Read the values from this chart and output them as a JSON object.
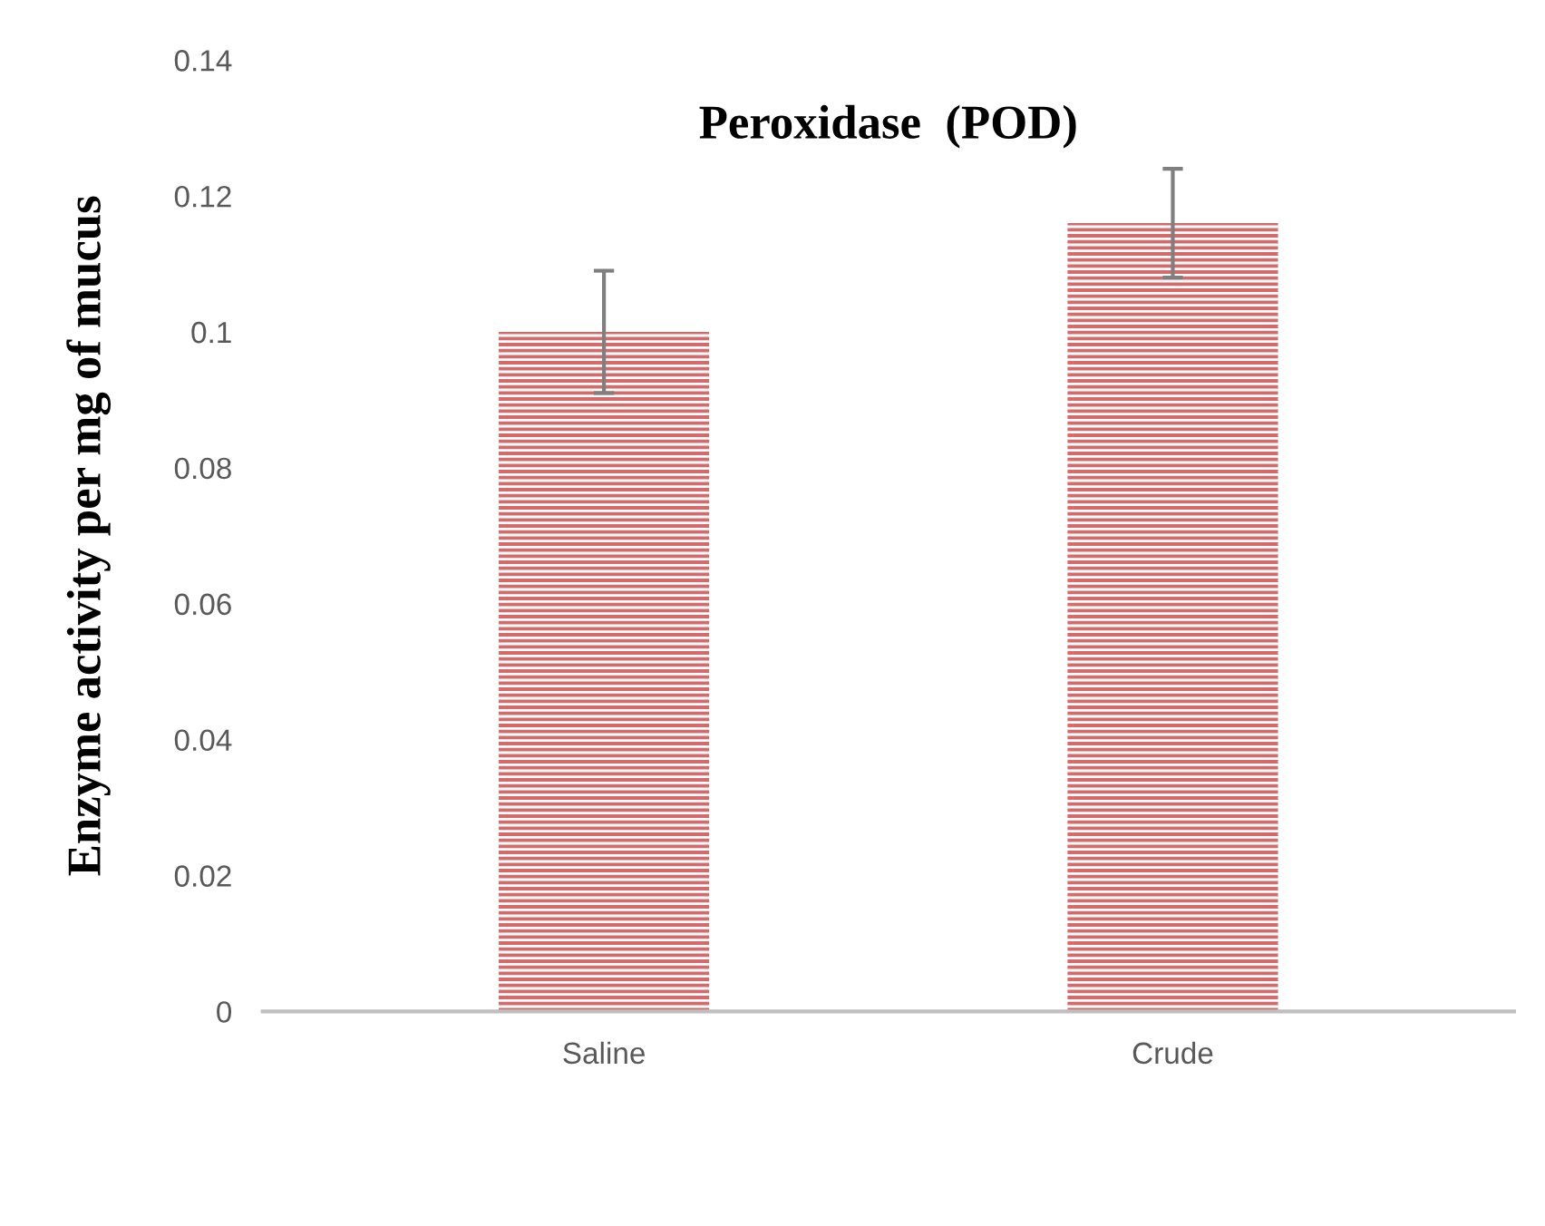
{
  "chart_data": {
    "type": "bar",
    "title": "Peroxidase  (POD)",
    "ylabel": "Enzyme activity per mg of mucus",
    "categories": [
      "Saline",
      "Crude"
    ],
    "values": [
      0.1,
      0.116
    ],
    "errors": [
      0.009,
      0.008
    ],
    "color": "#d46a6a",
    "ylim": [
      0,
      0.14
    ],
    "yticks": [
      0,
      0.02,
      0.04,
      0.06,
      0.08,
      0.1,
      0.12,
      0.14
    ],
    "grid": false
  }
}
